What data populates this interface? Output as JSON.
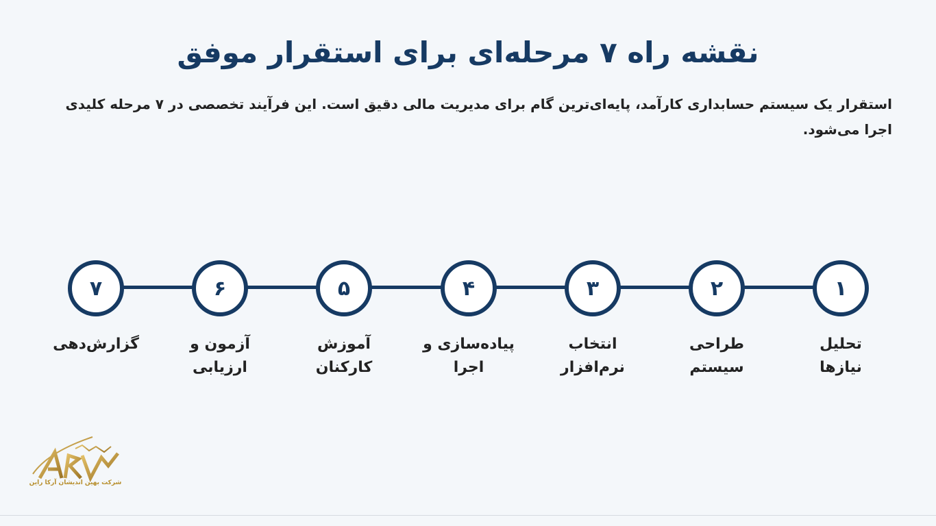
{
  "title": "نقشه راه ۷ مرحله‌ای برای استقرار موفق",
  "description": "استقرار یک سیستم حسابداری کارآمد، پایه‌ای‌ترین گام برای مدیریت مالی دقیق است. این فرآیند تخصصی در ۷ مرحله کلیدی اجرا می‌شود.",
  "steps": [
    {
      "number": "۱",
      "label": "تحلیل نیازها"
    },
    {
      "number": "۲",
      "label": "طراحی سیستم"
    },
    {
      "number": "۳",
      "label": "انتخاب نرم‌افزار"
    },
    {
      "number": "۴",
      "label": "پیاده‌سازی و اجرا"
    },
    {
      "number": "۵",
      "label": "آموزش کارکنان"
    },
    {
      "number": "۶",
      "label": "آزمون و ارزیابی"
    },
    {
      "number": "۷",
      "label": "گزارش‌دهی"
    }
  ],
  "logo": {
    "text": "شرکت بهین اندیشان آرکا راین",
    "mark": "ARK"
  },
  "colors": {
    "accent": "#163a63",
    "background": "#f4f7fa",
    "logo_gold": "#b8902f"
  }
}
